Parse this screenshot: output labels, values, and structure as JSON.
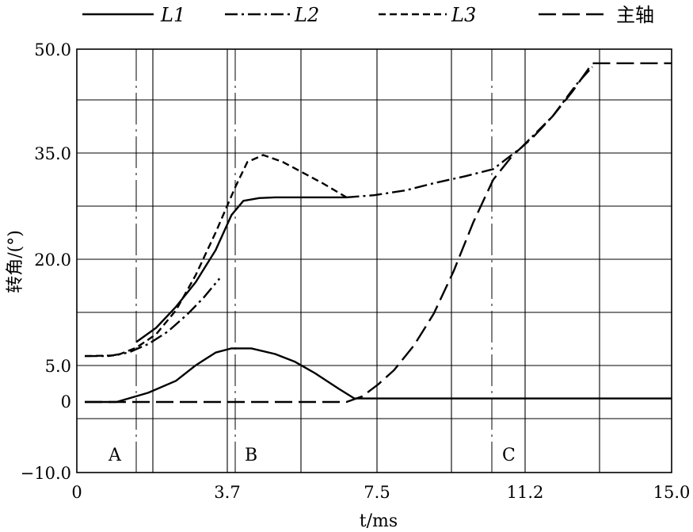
{
  "chart_data": {
    "type": "line",
    "title": "",
    "xlabel": "t/ms",
    "ylabel": "转角/(°)",
    "xlim": [
      0,
      15.0
    ],
    "ylim": [
      -10.0,
      50.0
    ],
    "grid": true,
    "legend_position": "top",
    "x_ticks": [
      "0",
      "3.7",
      "7.5",
      "11.2",
      "15.0"
    ],
    "y_ticks": [
      "-10.0",
      "0",
      "5.0",
      "20.0",
      "35.0",
      "50.0"
    ],
    "region_labels": [
      "A",
      "B",
      "C"
    ],
    "series": [
      {
        "name": "L1",
        "dash": "solid",
        "segments": [
          {
            "x": [
              0.2,
              1.0,
              1.8,
              2.5,
              3.0,
              3.5,
              3.9,
              4.4,
              5.0,
              5.5,
              6.0,
              6.6,
              7.0,
              9.0,
              11.0,
              13.0,
              15.0
            ],
            "y": [
              0.0,
              0.0,
              1.3,
              3.0,
              5.2,
              7.0,
              7.6,
              7.6,
              6.8,
              5.7,
              4.1,
              1.9,
              0.5,
              0.5,
              0.5,
              0.5,
              0.5
            ]
          },
          {
            "x": [
              1.5,
              2.0,
              2.5,
              3.0,
              3.5,
              3.9,
              4.2,
              4.6,
              5.0,
              6.0,
              6.8
            ],
            "y": [
              8.5,
              10.5,
              13.5,
              17.0,
              21.5,
              26.5,
              28.5,
              28.9,
              29.0,
              29.0,
              29.0
            ]
          }
        ]
      },
      {
        "name": "L2",
        "dash": "dash-dot",
        "segments": [
          {
            "x": [
              6.8,
              7.5,
              8.3,
              9.0,
              9.8,
              10.5,
              11.2,
              12.0,
              12.6,
              13.0
            ],
            "y": [
              29.0,
              29.3,
              30.0,
              31.0,
              32.0,
              33.0,
              36.0,
              40.5,
              45.0,
              47.5
            ]
          },
          {
            "x": [
              0.2,
              0.8,
              1.3,
              1.8,
              2.3,
              2.8,
              3.2,
              3.6
            ],
            "y": [
              6.5,
              6.5,
              7.0,
              8.2,
              10.0,
              12.5,
              14.8,
              17.5
            ]
          }
        ]
      },
      {
        "name": "L3",
        "dash": "dashed",
        "segments": [
          {
            "x": [
              0.2,
              1.0,
              1.5,
              2.0,
              2.5,
              3.0,
              3.5,
              4.0,
              4.3,
              4.7,
              5.2,
              5.7,
              6.2,
              6.8
            ],
            "y": [
              6.5,
              6.6,
              7.7,
              9.6,
              13.0,
              18.0,
              24.0,
              30.5,
              34.0,
              35.0,
              34.0,
              32.5,
              31.0,
              29.0
            ]
          }
        ]
      },
      {
        "name": "主轴",
        "dash": "long-dash",
        "segments": [
          {
            "x": [
              0.2,
              3.0,
              6.0,
              6.8,
              7.2,
              7.6,
              8.0,
              8.5,
              9.0,
              9.5,
              10.0,
              10.5,
              11.0,
              11.5,
              12.0,
              12.5,
              13.0,
              13.2,
              15.0
            ],
            "y": [
              0.0,
              0.0,
              0.0,
              0.0,
              0.8,
              2.5,
              4.5,
              8.0,
              12.5,
              18.5,
              25.5,
              31.5,
              35.0,
              37.5,
              40.5,
              44.0,
              48.0,
              48.0,
              48.0
            ]
          }
        ]
      }
    ]
  }
}
